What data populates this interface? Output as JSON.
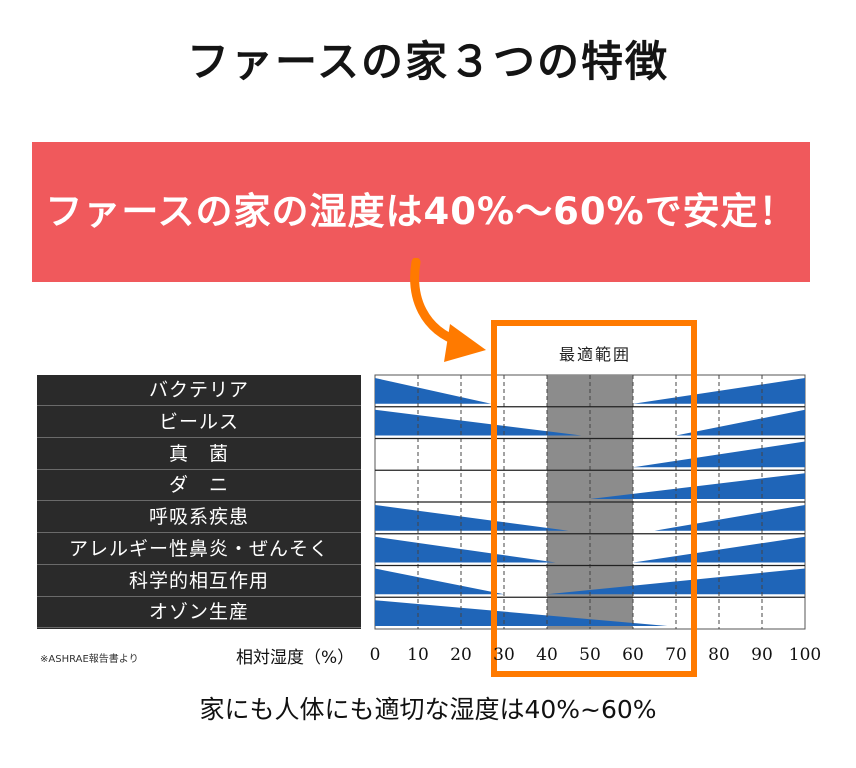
{
  "title": "ファースの家３つの特徴",
  "banner": {
    "text": "ファースの家の湿度は40%〜60%で安定！",
    "color": "#f0595c"
  },
  "highlight": {
    "label": "最適範囲",
    "color": "#ff7a00"
  },
  "source_note": "※ASHRAE報告書より",
  "caption": "家にも人体にも適切な湿度は40%~60%",
  "chart_data": {
    "type": "bar",
    "xlabel": "相対湿度（%）",
    "xlim": [
      0,
      100
    ],
    "xticks": [
      0,
      10,
      20,
      30,
      40,
      50,
      60,
      70,
      80,
      90,
      100
    ],
    "grid": true,
    "optimal_range": [
      40,
      60
    ],
    "colors": {
      "wedge": "#1f65b8",
      "optimal_band": "#8c8c8c",
      "label_panel": "#2a2a2a"
    },
    "rows": [
      {
        "label": "バクテリア",
        "low_end": 27,
        "high_start": 60
      },
      {
        "label": "ビールス",
        "low_end": 48,
        "high_start": 70
      },
      {
        "label": "真　菌",
        "low_end": 0,
        "high_start": 60
      },
      {
        "label": "ダ　ニ",
        "low_end": 0,
        "high_start": 50
      },
      {
        "label": "呼吸系疾患",
        "low_end": 45,
        "high_start": 65
      },
      {
        "label": "アレルギー性鼻炎・ぜんそく",
        "low_end": 42,
        "high_start": 60
      },
      {
        "label": "科学的相互作用",
        "low_end": 30,
        "high_start": 40
      },
      {
        "label": "オゾン生産",
        "low_end": 68,
        "high_start": 100
      }
    ]
  }
}
